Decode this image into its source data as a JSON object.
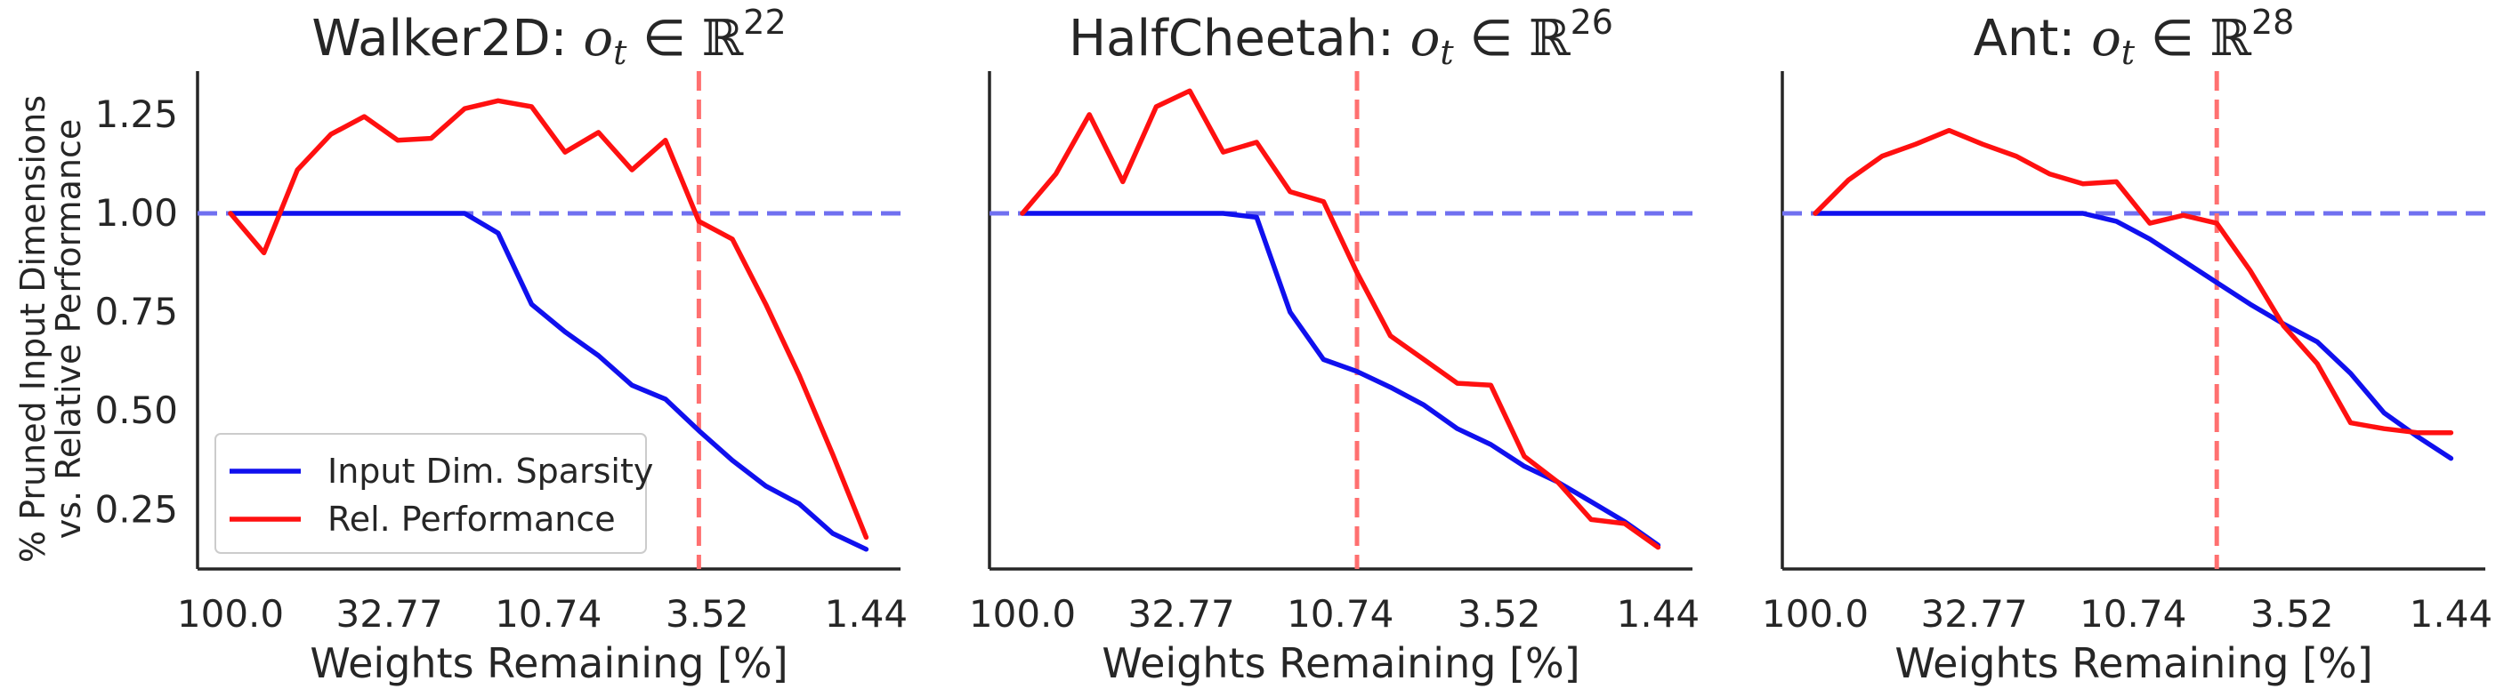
{
  "chart_data": [
    {
      "type": "line",
      "title": {
        "prefix": "Walker2D: ",
        "var": "o",
        "sub": "t",
        "op": " ∈ ",
        "set": "ℝ",
        "sup": "22"
      },
      "xlabel": "Weights Remaining [%]",
      "ylabel_lines": [
        "% Pruned Input Dimensions",
        "vs. Relative Performance"
      ],
      "xtick_labels": [
        "100.0",
        "32.77",
        "10.74",
        "3.52",
        "1.44"
      ],
      "ytick_labels": [
        "0.25",
        "0.50",
        "0.75",
        "1.00",
        "1.25"
      ],
      "yticks": [
        0.25,
        0.5,
        0.75,
        1.0,
        1.25
      ],
      "ylim": [
        0.1,
        1.36
      ],
      "x_index_range": [
        0,
        20
      ],
      "hline": 1.0,
      "vline_index": 14,
      "legend": {
        "position": "lower-left",
        "entries": [
          "Input Dim. Sparsity",
          "Rel. Performance"
        ]
      },
      "series": [
        {
          "name": "Input Dim. Sparsity",
          "color": "#1010ee",
          "values": [
            1.0,
            1.0,
            1.0,
            1.0,
            1.0,
            1.0,
            1.0,
            1.0,
            0.95,
            0.77,
            0.7,
            0.64,
            0.565,
            0.53,
            0.45,
            0.375,
            0.31,
            0.265,
            0.19,
            0.15
          ]
        },
        {
          "name": "Rel. Performance",
          "color": "#ff1010",
          "values": [
            1.0,
            0.9,
            1.11,
            1.2,
            1.245,
            1.185,
            1.19,
            1.265,
            1.285,
            1.27,
            1.155,
            1.205,
            1.11,
            1.185,
            0.98,
            0.935,
            0.77,
            0.59,
            0.39,
            0.18
          ]
        }
      ]
    },
    {
      "type": "line",
      "title": {
        "prefix": "HalfCheetah: ",
        "var": "o",
        "sub": "t",
        "op": " ∈ ",
        "set": "ℝ",
        "sup": "26"
      },
      "xlabel": "Weights Remaining [%]",
      "xtick_labels": [
        "100.0",
        "32.77",
        "10.74",
        "3.52",
        "1.44"
      ],
      "ylim": [
        0.1,
        1.36
      ],
      "x_index_range": [
        0,
        20
      ],
      "hline": 1.0,
      "vline_index": 10,
      "series": [
        {
          "name": "Input Dim. Sparsity",
          "color": "#1010ee",
          "values": [
            1.0,
            1.0,
            1.0,
            1.0,
            1.0,
            1.0,
            1.0,
            0.99,
            0.75,
            0.63,
            0.6,
            0.56,
            0.515,
            0.455,
            0.415,
            0.36,
            0.32,
            0.27,
            0.22,
            0.16
          ]
        },
        {
          "name": "Rel. Performance",
          "color": "#ff1010",
          "values": [
            1.0,
            1.1,
            1.25,
            1.08,
            1.27,
            1.31,
            1.155,
            1.18,
            1.055,
            1.03,
            0.85,
            0.69,
            0.63,
            0.57,
            0.565,
            0.385,
            0.32,
            0.225,
            0.215,
            0.155
          ]
        }
      ]
    },
    {
      "type": "line",
      "title": {
        "prefix": "Ant: ",
        "var": "o",
        "sub": "t",
        "op": " ∈ ",
        "set": "ℝ",
        "sup": "28"
      },
      "xlabel": "Weights Remaining [%]",
      "xtick_labels": [
        "100.0",
        "32.77",
        "10.74",
        "3.52",
        "1.44"
      ],
      "ylim": [
        0.1,
        1.36
      ],
      "x_index_range": [
        0,
        20
      ],
      "hline": 1.0,
      "vline_index": 12,
      "series": [
        {
          "name": "Input Dim. Sparsity",
          "color": "#1010ee",
          "values": [
            1.0,
            1.0,
            1.0,
            1.0,
            1.0,
            1.0,
            1.0,
            1.0,
            1.0,
            0.98,
            0.935,
            0.88,
            0.825,
            0.77,
            0.72,
            0.675,
            0.595,
            0.495,
            0.435,
            0.38
          ]
        },
        {
          "name": "Rel. Performance",
          "color": "#ff1010",
          "values": [
            1.0,
            1.085,
            1.145,
            1.175,
            1.21,
            1.175,
            1.145,
            1.1,
            1.075,
            1.08,
            0.975,
            0.995,
            0.975,
            0.855,
            0.715,
            0.62,
            0.47,
            0.455,
            0.445,
            0.445
          ]
        }
      ]
    }
  ]
}
